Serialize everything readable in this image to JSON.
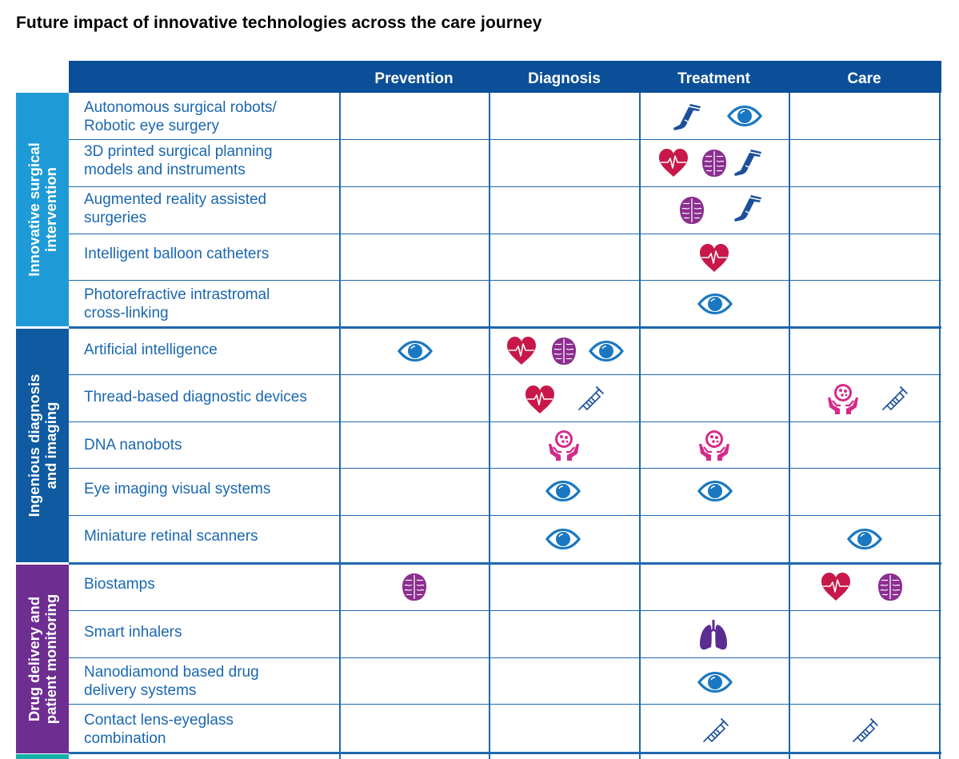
{
  "title": "Future impact of innovative technologies across the care journey",
  "columns": [
    "Prevention",
    "Diagnosis",
    "Treatment",
    "Care"
  ],
  "colors": {
    "header": "#0b4f99",
    "group1": "#1e9bd7",
    "group2": "#0f5aa0",
    "group3": "#6d2d91",
    "group4": "#14b1a9",
    "text": "#1a67b0",
    "heart": "#c8184a",
    "brain": "#8b2d8e",
    "eye": "#1a78c2",
    "leg": "#1b4f9a",
    "hands": "#d52a8a",
    "lungs": "#5c2d91"
  },
  "groups": [
    {
      "label_line1": "Innovative surgical",
      "label_line2": "intervention"
    },
    {
      "label_line1": "Ingenious diagnosis",
      "label_line2": "and imaging"
    },
    {
      "label_line1": "Drug delivery and",
      "label_line2": "patient monitoring"
    },
    {
      "label_line1": "",
      "label_line2": ""
    }
  ],
  "rows": [
    {
      "label": "Autonomous surgical robots/ Robotic eye surgery",
      "line1": "Autonomous surgical robots/",
      "line2": "Robotic eye surgery",
      "cells": [
        [],
        [],
        [
          "prosthetic-leg-icon",
          "eye-icon"
        ],
        []
      ]
    },
    {
      "label": "3D printed surgical planning models and instruments",
      "line1": "3D printed surgical planning",
      "line2": "models and instruments",
      "cells": [
        [],
        [],
        [
          "heart-icon",
          "brain-icon",
          "prosthetic-leg-icon"
        ],
        []
      ]
    },
    {
      "label": "Augmented reality assisted surgeries",
      "line1": "Augmented reality assisted",
      "line2": "surgeries",
      "cells": [
        [],
        [],
        [
          "brain-icon",
          "prosthetic-leg-icon"
        ],
        []
      ]
    },
    {
      "label": "Intelligent balloon catheters",
      "line1": "Intelligent balloon catheters",
      "line2": "",
      "cells": [
        [],
        [],
        [
          "heart-icon"
        ],
        []
      ]
    },
    {
      "label": "Photorefractive intrastromal cross-linking",
      "line1": "Photorefractive intrastromal",
      "line2": "cross-linking",
      "cells": [
        [],
        [],
        [
          "eye-icon"
        ],
        []
      ]
    },
    {
      "label": "Artificial intelligence",
      "line1": "Artificial intelligence",
      "line2": "",
      "cells": [
        [
          "eye-icon"
        ],
        [
          "heart-icon",
          "brain-icon",
          "eye-icon"
        ],
        [],
        []
      ]
    },
    {
      "label": "Thread-based diagnostic devices",
      "line1": "Thread-based diagnostic devices",
      "line2": "",
      "cells": [
        [],
        [
          "heart-icon",
          "syringe-icon"
        ],
        [],
        [
          "cell-hands-icon",
          "syringe-icon"
        ]
      ]
    },
    {
      "label": "DNA nanobots",
      "line1": "DNA nanobots",
      "line2": "",
      "cells": [
        [],
        [
          "cell-hands-icon"
        ],
        [
          "cell-hands-icon"
        ],
        []
      ]
    },
    {
      "label": "Eye imaging visual systems",
      "line1": "Eye imaging visual systems",
      "line2": "",
      "cells": [
        [],
        [
          "eye-icon"
        ],
        [
          "eye-icon"
        ],
        []
      ]
    },
    {
      "label": "Miniature retinal scanners",
      "line1": "Miniature retinal scanners",
      "line2": "",
      "cells": [
        [],
        [
          "eye-icon"
        ],
        [],
        [
          "eye-icon"
        ]
      ]
    },
    {
      "label": "Biostamps",
      "line1": "Biostamps",
      "line2": "",
      "cells": [
        [
          "brain-icon"
        ],
        [],
        [],
        [
          "heart-icon",
          "brain-icon"
        ]
      ]
    },
    {
      "label": "Smart inhalers",
      "line1": "Smart inhalers",
      "line2": "",
      "cells": [
        [],
        [],
        [
          "lungs-icon"
        ],
        []
      ]
    },
    {
      "label": "Nanodiamond based drug delivery systems",
      "line1": "Nanodiamond based drug",
      "line2": "delivery systems",
      "cells": [
        [],
        [],
        [
          "eye-icon"
        ],
        []
      ]
    },
    {
      "label": "Contact lens-eyeglass combination",
      "line1": "Contact lens-eyeglass",
      "line2": "combination",
      "cells": [
        [],
        [],
        [
          "syringe-icon"
        ],
        [
          "syringe-icon"
        ]
      ]
    }
  ]
}
